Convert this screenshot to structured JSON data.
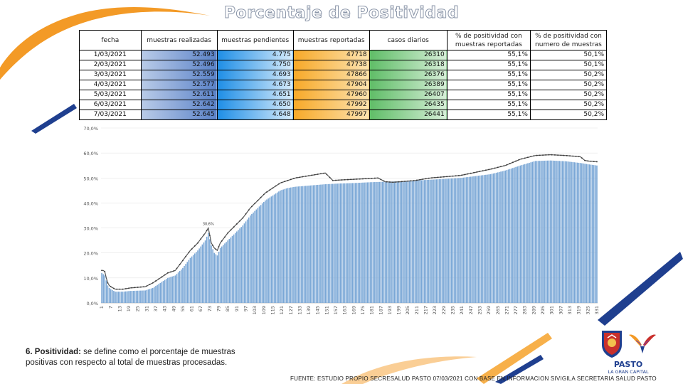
{
  "title": "Porcentaje de Positividad",
  "table": {
    "headers": [
      "fecha",
      "muestras realizadas",
      "muestras pendientes",
      "muestras reportadas",
      "casos diarios",
      "% de positividad con muestras reportadas",
      "% de positividad con numero de muestras"
    ],
    "rows": [
      {
        "fecha": "1/03/2021",
        "realizadas": "52.493",
        "pendientes": "4.775",
        "reportadas": "47718",
        "casos": "26310",
        "pos_reportadas": "55,1%",
        "pos_muestras": "50,1%"
      },
      {
        "fecha": "2/03/2021",
        "realizadas": "52.496",
        "pendientes": "4.750",
        "reportadas": "47738",
        "casos": "26318",
        "pos_reportadas": "55,1%",
        "pos_muestras": "50,1%"
      },
      {
        "fecha": "3/03/2021",
        "realizadas": "52.559",
        "pendientes": "4.693",
        "reportadas": "47866",
        "casos": "26376",
        "pos_reportadas": "55,1%",
        "pos_muestras": "50,2%"
      },
      {
        "fecha": "4/03/2021",
        "realizadas": "52.577",
        "pendientes": "4.673",
        "reportadas": "47904",
        "casos": "26389",
        "pos_reportadas": "55,1%",
        "pos_muestras": "50,2%"
      },
      {
        "fecha": "5/03/2021",
        "realizadas": "52.611",
        "pendientes": "4.651",
        "reportadas": "47960",
        "casos": "26407",
        "pos_reportadas": "55,1%",
        "pos_muestras": "50,2%"
      },
      {
        "fecha": "6/03/2021",
        "realizadas": "52.642",
        "pendientes": "4.650",
        "reportadas": "47992",
        "casos": "26435",
        "pos_reportadas": "55,1%",
        "pos_muestras": "50,2%"
      },
      {
        "fecha": "7/03/2021",
        "realizadas": "52.645",
        "pendientes": "4.648",
        "reportadas": "47997",
        "casos": "26441",
        "pos_reportadas": "55,1%",
        "pos_muestras": "50,2%"
      }
    ]
  },
  "chart_data": {
    "type": "bar",
    "title": "",
    "xlabel": "",
    "ylabel": "",
    "ylim": [
      0,
      0.7
    ],
    "yticks": [
      "0,0%",
      "10,0%",
      "20,0%",
      "30,0%",
      "40,0%",
      "50,0%",
      "60,0%",
      "70,0%"
    ],
    "x_start": 1,
    "x_tick_step": 6,
    "series": [
      {
        "name": "% de positividad con numero de muestras",
        "style": "bars",
        "anchors": [
          [
            1,
            12
          ],
          [
            2,
            11.5
          ],
          [
            3,
            11
          ],
          [
            4,
            9
          ],
          [
            5,
            7
          ],
          [
            6,
            6
          ],
          [
            7,
            5.5
          ],
          [
            10,
            4.5
          ],
          [
            15,
            4.5
          ],
          [
            20,
            4.8
          ],
          [
            30,
            5
          ],
          [
            35,
            6
          ],
          [
            40,
            8
          ],
          [
            45,
            10
          ],
          [
            50,
            11
          ],
          [
            55,
            14
          ],
          [
            60,
            18
          ],
          [
            65,
            21
          ],
          [
            70,
            25
          ],
          [
            72,
            28
          ],
          [
            74,
            23
          ],
          [
            76,
            20
          ],
          [
            78,
            19
          ],
          [
            80,
            22
          ],
          [
            85,
            25
          ],
          [
            90,
            28
          ],
          [
            95,
            31
          ],
          [
            100,
            35
          ],
          [
            105,
            38
          ],
          [
            110,
            41
          ],
          [
            115,
            43
          ],
          [
            120,
            45
          ],
          [
            125,
            46
          ],
          [
            130,
            46.5
          ],
          [
            140,
            47
          ],
          [
            150,
            47.5
          ],
          [
            160,
            47.8
          ],
          [
            170,
            48
          ],
          [
            180,
            48.3
          ],
          [
            190,
            48.5
          ],
          [
            200,
            48.7
          ],
          [
            210,
            49
          ],
          [
            220,
            49.3
          ],
          [
            240,
            50
          ],
          [
            260,
            51.5
          ],
          [
            270,
            53
          ],
          [
            280,
            55
          ],
          [
            290,
            56.8
          ],
          [
            300,
            57
          ],
          [
            310,
            56.7
          ],
          [
            320,
            56
          ],
          [
            325,
            55.5
          ],
          [
            331,
            55
          ]
        ]
      },
      {
        "name": "% de positividad con muestras reportadas",
        "style": "line",
        "anchors": [
          [
            1,
            13
          ],
          [
            2,
            13
          ],
          [
            3,
            12.5
          ],
          [
            4,
            10
          ],
          [
            5,
            8
          ],
          [
            6,
            7
          ],
          [
            7,
            6.5
          ],
          [
            10,
            5.5
          ],
          [
            15,
            5.5
          ],
          [
            20,
            6
          ],
          [
            30,
            6.5
          ],
          [
            35,
            8
          ],
          [
            40,
            10
          ],
          [
            45,
            12
          ],
          [
            50,
            13
          ],
          [
            55,
            17
          ],
          [
            60,
            21
          ],
          [
            65,
            24
          ],
          [
            70,
            28
          ],
          [
            72,
            30
          ],
          [
            74,
            24
          ],
          [
            76,
            22
          ],
          [
            78,
            21
          ],
          [
            80,
            24
          ],
          [
            85,
            28
          ],
          [
            90,
            31
          ],
          [
            95,
            34
          ],
          [
            100,
            38
          ],
          [
            105,
            41
          ],
          [
            110,
            44
          ],
          [
            115,
            46
          ],
          [
            120,
            48
          ],
          [
            125,
            49
          ],
          [
            130,
            50
          ],
          [
            140,
            51
          ],
          [
            150,
            52
          ],
          [
            155,
            49
          ],
          [
            160,
            49.2
          ],
          [
            170,
            49.5
          ],
          [
            180,
            49.8
          ],
          [
            185,
            50
          ],
          [
            190,
            48.5
          ],
          [
            195,
            48.3
          ],
          [
            200,
            48.5
          ],
          [
            210,
            49
          ],
          [
            220,
            50
          ],
          [
            240,
            51
          ],
          [
            260,
            53.5
          ],
          [
            270,
            55
          ],
          [
            280,
            57.5
          ],
          [
            290,
            59
          ],
          [
            300,
            59.3
          ],
          [
            310,
            59
          ],
          [
            320,
            58.5
          ],
          [
            323,
            57
          ],
          [
            325,
            56.8
          ],
          [
            331,
            56.5
          ]
        ]
      }
    ],
    "annotations": [
      "30,6%"
    ]
  },
  "note": {
    "lead": "6. Positividad:",
    "text": " se define como el porcentaje de muestras positivas con respecto al total de muestras procesadas."
  },
  "source": "FUENTE: ESTUDIO PROPIO SECRESALUD PASTO 07/03/2021 CON BASE EN INFORMACION SIVIGILA SECRETARIA SALUD PASTO",
  "logo": {
    "name": "PASTO",
    "tagline": "LA GRAN CAPITAL"
  },
  "colors": {
    "bar": "#7aa7d6",
    "line": "#555555",
    "accent_orange": "#f39a26",
    "accent_navy": "#1f3f8f"
  }
}
